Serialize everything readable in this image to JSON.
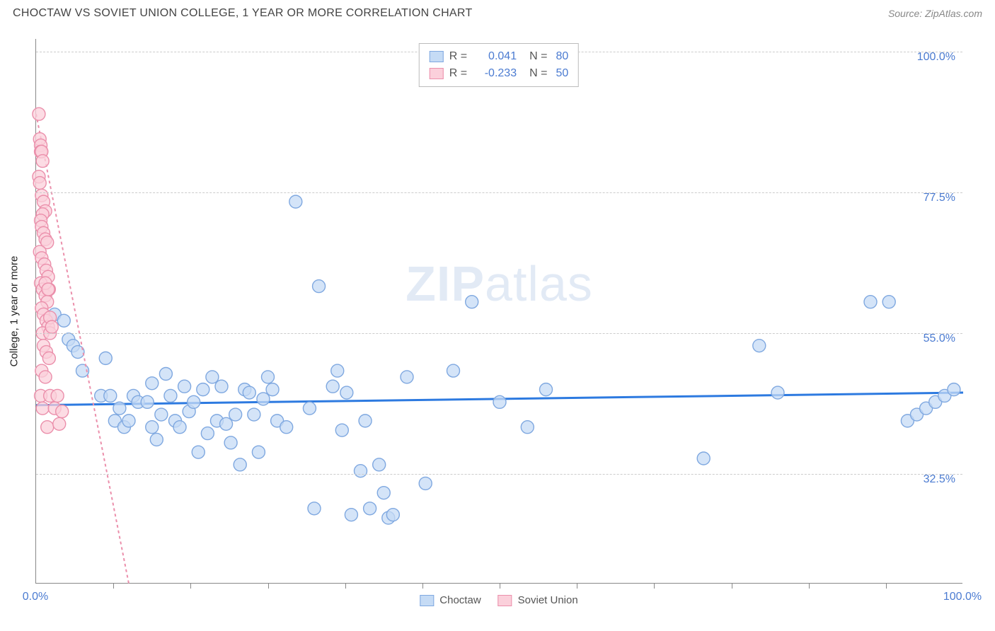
{
  "header": {
    "title": "CHOCTAW VS SOVIET UNION COLLEGE, 1 YEAR OR MORE CORRELATION CHART",
    "source": "Source: ZipAtlas.com"
  },
  "watermark": {
    "bold": "ZIP",
    "light": "atlas"
  },
  "chart": {
    "type": "scatter",
    "ylabel": "College, 1 year or more",
    "xlim": [
      0,
      100
    ],
    "ylim": [
      15,
      102
    ],
    "yticks": [
      {
        "v": 32.5,
        "label": "32.5%"
      },
      {
        "v": 55.0,
        "label": "55.0%"
      },
      {
        "v": 77.5,
        "label": "77.5%"
      },
      {
        "v": 100.0,
        "label": "100.0%"
      }
    ],
    "xticks_minor": [
      8.33,
      16.67,
      25,
      33.33,
      41.67,
      50,
      58.33,
      66.67,
      75,
      83.33,
      91.67
    ],
    "xtick_labels": [
      {
        "v": 0,
        "label": "0.0%"
      },
      {
        "v": 100,
        "label": "100.0%"
      }
    ],
    "marker_radius": 9,
    "marker_stroke_width": 1.4,
    "grid_color": "#cccccc",
    "background_color": "#ffffff",
    "series": [
      {
        "name": "Choctaw",
        "fill": "#c5dbf5",
        "stroke": "#7fa8e0",
        "fill_opacity": 0.75,
        "reg_color": "#2d7ae0",
        "reg_width": 3,
        "reg_dash": "none",
        "reg_y0": 43.5,
        "reg_y1": 45.5,
        "points": [
          [
            2,
            58
          ],
          [
            3,
            57
          ],
          [
            3.5,
            54
          ],
          [
            4,
            53
          ],
          [
            4.5,
            52
          ],
          [
            5,
            49
          ],
          [
            7,
            45
          ],
          [
            7.5,
            51
          ],
          [
            8,
            45
          ],
          [
            8.5,
            41
          ],
          [
            9,
            43
          ],
          [
            9.5,
            40
          ],
          [
            10,
            41
          ],
          [
            10.5,
            45
          ],
          [
            11,
            44
          ],
          [
            12,
            44
          ],
          [
            12.5,
            47
          ],
          [
            12.5,
            40
          ],
          [
            13,
            38
          ],
          [
            13.5,
            42
          ],
          [
            14,
            48.5
          ],
          [
            14.5,
            45
          ],
          [
            15,
            41
          ],
          [
            15.5,
            40
          ],
          [
            16,
            46.5
          ],
          [
            16.5,
            42.5
          ],
          [
            17,
            44
          ],
          [
            17.5,
            36
          ],
          [
            18,
            46
          ],
          [
            18.5,
            39
          ],
          [
            19,
            48
          ],
          [
            19.5,
            41
          ],
          [
            20,
            46.5
          ],
          [
            20.5,
            40.5
          ],
          [
            21,
            37.5
          ],
          [
            21.5,
            42
          ],
          [
            22,
            34
          ],
          [
            22.5,
            46
          ],
          [
            23,
            45.5
          ],
          [
            23.5,
            42
          ],
          [
            24,
            36
          ],
          [
            24.5,
            44.5
          ],
          [
            25,
            48
          ],
          [
            25.5,
            46
          ],
          [
            26,
            41
          ],
          [
            27,
            40
          ],
          [
            28,
            76
          ],
          [
            29.5,
            43
          ],
          [
            30,
            27
          ],
          [
            30.5,
            62.5
          ],
          [
            32,
            46.5
          ],
          [
            32.5,
            49
          ],
          [
            33,
            39.5
          ],
          [
            33.5,
            45.5
          ],
          [
            34,
            26
          ],
          [
            35,
            33
          ],
          [
            35.5,
            41
          ],
          [
            36,
            27
          ],
          [
            37,
            34
          ],
          [
            37.5,
            29.5
          ],
          [
            38,
            25.5
          ],
          [
            38.5,
            26
          ],
          [
            40,
            48
          ],
          [
            42,
            31
          ],
          [
            45,
            49
          ],
          [
            47,
            60
          ],
          [
            50,
            44
          ],
          [
            53,
            40
          ],
          [
            55,
            46
          ],
          [
            72,
            35
          ],
          [
            78,
            53
          ],
          [
            80,
            45.5
          ],
          [
            90,
            60
          ],
          [
            92,
            60
          ],
          [
            94,
            41
          ],
          [
            95,
            42
          ],
          [
            96,
            43
          ],
          [
            97,
            44
          ],
          [
            98,
            45
          ],
          [
            99,
            46
          ]
        ]
      },
      {
        "name": "Soviet Union",
        "fill": "#fbd0db",
        "stroke": "#eb8fab",
        "fill_opacity": 0.75,
        "reg_color": "#eb8fab",
        "reg_width": 2,
        "reg_dash": "4,4",
        "reg_y0": 90,
        "reg_y1": 15,
        "reg_x1": 10,
        "points": [
          [
            0.3,
            90
          ],
          [
            0.4,
            86
          ],
          [
            0.5,
            85
          ],
          [
            0.5,
            84
          ],
          [
            0.6,
            84
          ],
          [
            0.7,
            82.5
          ],
          [
            0.3,
            80
          ],
          [
            0.4,
            79
          ],
          [
            0.6,
            77
          ],
          [
            0.8,
            76
          ],
          [
            1.0,
            74.5
          ],
          [
            0.7,
            74
          ],
          [
            0.5,
            73
          ],
          [
            0.6,
            72
          ],
          [
            0.8,
            71
          ],
          [
            1.0,
            70
          ],
          [
            1.2,
            69.5
          ],
          [
            0.4,
            68
          ],
          [
            0.6,
            67
          ],
          [
            0.9,
            66
          ],
          [
            1.1,
            65
          ],
          [
            1.3,
            64
          ],
          [
            0.5,
            63
          ],
          [
            0.7,
            62
          ],
          [
            1.0,
            61
          ],
          [
            1.2,
            60
          ],
          [
            1.4,
            62
          ],
          [
            0.6,
            59
          ],
          [
            0.8,
            58
          ],
          [
            1.1,
            57
          ],
          [
            1.3,
            56
          ],
          [
            1.5,
            57.5
          ],
          [
            0.7,
            55
          ],
          [
            1.0,
            63
          ],
          [
            1.3,
            62
          ],
          [
            1.5,
            55
          ],
          [
            0.8,
            53
          ],
          [
            1.1,
            52
          ],
          [
            1.4,
            51
          ],
          [
            1.7,
            56
          ],
          [
            0.6,
            49
          ],
          [
            1.0,
            48
          ],
          [
            0.5,
            45
          ],
          [
            1.5,
            45
          ],
          [
            2.3,
            45
          ],
          [
            0.7,
            43
          ],
          [
            2.0,
            43
          ],
          [
            2.8,
            42.5
          ],
          [
            1.2,
            40
          ],
          [
            2.5,
            40.5
          ]
        ]
      }
    ],
    "legend_top": [
      {
        "swatch_fill": "#c5dbf5",
        "swatch_stroke": "#7fa8e0",
        "r_label": "R =",
        "r_val": "0.041",
        "n_label": "N =",
        "n_val": "80"
      },
      {
        "swatch_fill": "#fbd0db",
        "swatch_stroke": "#eb8fab",
        "r_label": "R =",
        "r_val": "-0.233",
        "n_label": "N =",
        "n_val": "50"
      }
    ],
    "legend_bottom": [
      {
        "swatch_fill": "#c5dbf5",
        "swatch_stroke": "#7fa8e0",
        "label": "Choctaw"
      },
      {
        "swatch_fill": "#fbd0db",
        "swatch_stroke": "#eb8fab",
        "label": "Soviet Union"
      }
    ]
  }
}
